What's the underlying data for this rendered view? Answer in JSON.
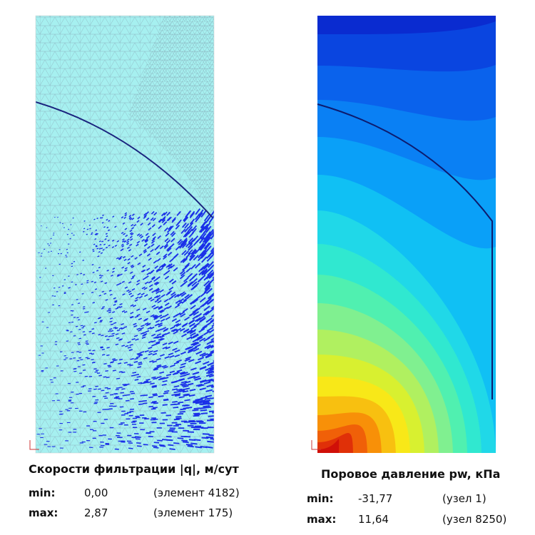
{
  "panels": [
    {
      "title": "Скорости фильтрации |q|, м/сут",
      "rows": [
        {
          "label": "min:",
          "value": "0,00",
          "location": "(элемент 4182)"
        },
        {
          "label": "max:",
          "value": "2,87",
          "location": "(элемент 175)"
        }
      ]
    },
    {
      "title": "Поровое давление pw, кПа",
      "rows": [
        {
          "label": "min:",
          "value": "-31,77",
          "location": "(узел 1)"
        },
        {
          "label": "max:",
          "value": "11,64",
          "location": "(узел 8250)"
        }
      ]
    }
  ]
}
